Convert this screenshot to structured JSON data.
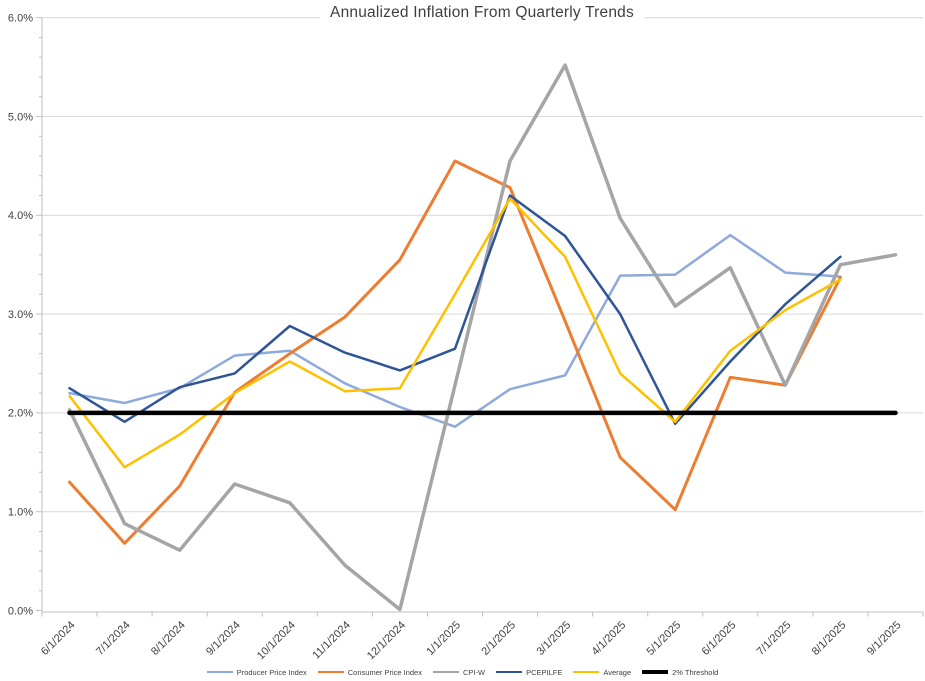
{
  "chart_data": {
    "type": "line",
    "title": "Annualized Inflation From Quarterly Trends",
    "xlabel": "",
    "ylabel": "",
    "x_labels": [
      "6/1/2024",
      "7/1/2024",
      "8/1/2024",
      "9/1/2024",
      "10/1/2024",
      "11/1/2024",
      "12/1/2024",
      "1/1/2025",
      "2/1/2025",
      "3/1/2025",
      "4/1/2025",
      "5/1/2025",
      "6/1/2025",
      "7/1/2025",
      "8/1/2025",
      "9/1/2025"
    ],
    "y_axis": {
      "min": 0,
      "max": 6,
      "major_step": 1,
      "minor_step": 0.2,
      "tick_labels": [
        "0.0%",
        "1.0%",
        "2.0%",
        "3.0%",
        "4.0%",
        "5.0%",
        "6.0%"
      ]
    },
    "grid": "horizontal-major",
    "legend_position": "bottom",
    "series": [
      {
        "name": "Producer Price Index",
        "color": "#8EAADC",
        "width": 2.5,
        "values": [
          2.2,
          2.1,
          2.25,
          2.58,
          2.63,
          2.3,
          2.06,
          1.86,
          2.24,
          2.38,
          3.39,
          3.4,
          3.8,
          3.42,
          3.38,
          null
        ]
      },
      {
        "name": "Consumer Price Index",
        "color": "#ED7D31",
        "width": 3,
        "values": [
          1.3,
          0.68,
          1.26,
          2.21,
          2.6,
          2.97,
          3.55,
          4.55,
          4.28,
          2.93,
          1.55,
          1.02,
          2.36,
          2.28,
          3.37,
          null
        ]
      },
      {
        "name": "CPI-W",
        "color": "#A5A5A5",
        "width": 3.5,
        "values": [
          2.03,
          0.88,
          0.61,
          1.28,
          1.09,
          0.46,
          0.01,
          2.28,
          4.55,
          5.52,
          3.97,
          3.08,
          3.47,
          2.28,
          3.5,
          3.6
        ]
      },
      {
        "name": "PCEPILFE",
        "color": "#2F5597",
        "width": 2.5,
        "values": [
          2.25,
          1.91,
          2.26,
          2.4,
          2.88,
          2.61,
          2.43,
          2.65,
          4.2,
          3.79,
          3.0,
          1.89,
          2.52,
          3.1,
          3.58,
          null
        ]
      },
      {
        "name": "Average",
        "color": "#FFC000",
        "width": 2.5,
        "values": [
          2.17,
          1.45,
          1.78,
          2.2,
          2.52,
          2.22,
          2.25,
          3.2,
          4.17,
          3.58,
          2.4,
          1.91,
          2.63,
          3.04,
          3.35,
          null
        ]
      },
      {
        "name": "2% Threshold",
        "color": "#000000",
        "width": 4.5,
        "values": [
          2.0,
          2.0,
          2.0,
          2.0,
          2.0,
          2.0,
          2.0,
          2.0,
          2.0,
          2.0,
          2.0,
          2.0,
          2.0,
          2.0,
          2.0,
          2.0
        ]
      }
    ],
    "colors": {
      "gridline": "#D9D9D9",
      "axis": "#BFBFBF",
      "tick_text": "#404040",
      "background": "#FFFFFF"
    }
  }
}
